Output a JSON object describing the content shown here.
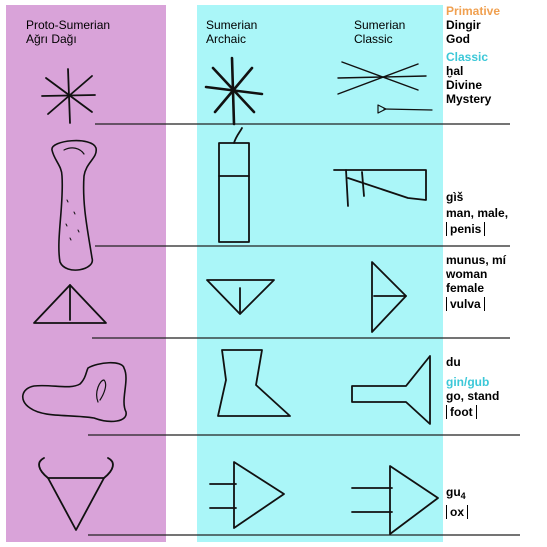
{
  "headers": {
    "proto": [
      "Proto-Sumerian",
      "Ağrı Dağı"
    ],
    "archaic": [
      "Sumerian",
      "Archaic"
    ],
    "classic": [
      "Sumerian",
      "Classic"
    ]
  },
  "rows": [
    {
      "sign": "dingir",
      "lines": [
        {
          "text": "Primative",
          "style": "accent-orange"
        },
        {
          "text": "Dingir",
          "style": "plain"
        },
        {
          "text": "God",
          "style": "plain"
        },
        {
          "text": "Classic",
          "style": "accent-cyan"
        },
        {
          "text": "ḫal",
          "style": "plain"
        },
        {
          "text": "Divine",
          "style": "plain"
        },
        {
          "text": "Mystery",
          "style": "plain"
        }
      ]
    },
    {
      "sign": "gis",
      "lines": [
        {
          "text": "gìš",
          "style": "plain"
        },
        {
          "text": "man, male,",
          "style": "plain"
        },
        {
          "text": "penis",
          "style": "brk"
        }
      ]
    },
    {
      "sign": "munus",
      "lines": [
        {
          "text": "munus, mí",
          "style": "plain"
        },
        {
          "text": "woman",
          "style": "plain"
        },
        {
          "text": "female",
          "style": "plain"
        },
        {
          "text": "vulva",
          "style": "brk"
        }
      ]
    },
    {
      "sign": "du",
      "lines": [
        {
          "text": "du",
          "style": "plain"
        },
        {
          "text": "gin/gub",
          "style": "accent-cyan"
        },
        {
          "text": "go, stand",
          "style": "plain"
        },
        {
          "text": "foot",
          "style": "brk"
        }
      ]
    },
    {
      "sign": "gu",
      "lines": [
        {
          "text": "gu",
          "style": "plain",
          "sub": "4"
        },
        {
          "text": "ox",
          "style": "brk"
        }
      ]
    }
  ],
  "colors": {
    "proto_column": "#d9a3d9",
    "sumerian_column": "#aaf6f8",
    "accent_orange": "#f0a050",
    "accent_cyan": "#3cc8d8",
    "ink": "#111111"
  }
}
